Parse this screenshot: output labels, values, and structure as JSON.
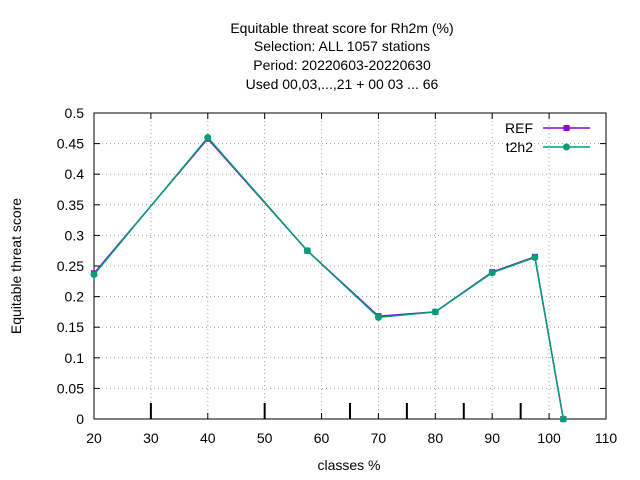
{
  "chart_data": {
    "type": "line",
    "title_lines": [
      "Equitable threat score  for Rh2m (%)",
      "Selection: ALL   1057 stations",
      "Period: 20220603-20220630",
      "Used  00,03,...,21  + 00 03 ... 66"
    ],
    "xlabel": "classes %",
    "ylabel": "Equitable threat score",
    "xlim": [
      20,
      110
    ],
    "ylim": [
      0,
      0.5
    ],
    "xticks": [
      20,
      30,
      40,
      50,
      60,
      70,
      80,
      90,
      100,
      110
    ],
    "yticks": [
      0,
      0.05,
      0.1,
      0.15,
      0.2,
      0.25,
      0.3,
      0.35,
      0.4,
      0.45,
      0.5
    ],
    "ytick_labels": [
      "0",
      "0.05",
      "0.1",
      "0.15",
      "0.2",
      "0.25",
      "0.3",
      "0.35",
      "0.4",
      "0.45",
      "0.5"
    ],
    "grid": true,
    "legend_position": "top-right",
    "bottom_markers_x": [
      30,
      50,
      65,
      75,
      85,
      95
    ],
    "series": [
      {
        "name": "REF",
        "color": "#9400d3",
        "x": [
          20,
          40,
          57.5,
          70,
          80,
          90,
          97.5,
          102.5
        ],
        "y": [
          0.238,
          0.458,
          0.275,
          0.168,
          0.175,
          0.24,
          0.265,
          0.0
        ]
      },
      {
        "name": "t2h2",
        "color": "#009e73",
        "x": [
          20,
          40,
          57.5,
          70,
          80,
          90,
          97.5,
          102.5
        ],
        "y": [
          0.236,
          0.46,
          0.275,
          0.166,
          0.175,
          0.239,
          0.264,
          0.0
        ]
      }
    ]
  }
}
